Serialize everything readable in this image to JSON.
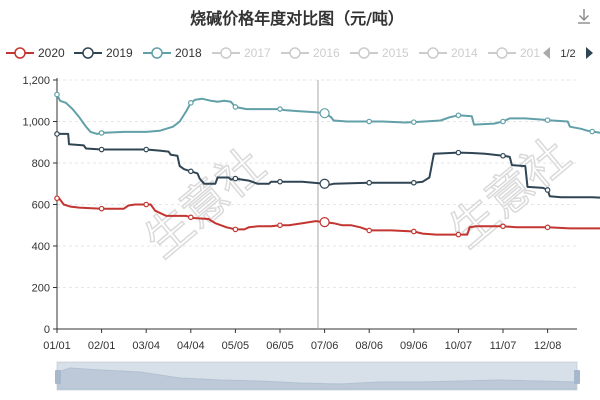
{
  "title": "烧碱价格年度对比图（元/吨）",
  "pager": {
    "label": "1/2"
  },
  "toolbox": {
    "icon": "download-icon"
  },
  "watermark": {
    "text": "生意社"
  },
  "chart_data": {
    "type": "line",
    "title": "烧碱价格年度对比图（元/吨）",
    "xlabel": "",
    "ylabel": "",
    "ylim": [
      0,
      1200
    ],
    "yticks": [
      0,
      200,
      400,
      600,
      800,
      1000,
      1200
    ],
    "grid": true,
    "legend_position": "top",
    "x_tick_labels": [
      "01/01",
      "02/01",
      "03/04",
      "04/04",
      "05/05",
      "06/05",
      "07/06",
      "08/06",
      "09/06",
      "10/07",
      "11/07",
      "12/08"
    ],
    "legend": [
      {
        "name": "2020",
        "color": "#c23531",
        "active": true
      },
      {
        "name": "2019",
        "color": "#2f4554",
        "active": true
      },
      {
        "name": "2018",
        "color": "#61a0a8",
        "active": true
      },
      {
        "name": "2017",
        "color": "#cccccc",
        "active": false
      },
      {
        "name": "2016",
        "color": "#cccccc",
        "active": false
      },
      {
        "name": "2015",
        "color": "#cccccc",
        "active": false
      },
      {
        "name": "2014",
        "color": "#cccccc",
        "active": false
      },
      {
        "name": "201",
        "color": "#cccccc",
        "active": false
      }
    ],
    "series": [
      {
        "name": "2018",
        "color": "#61a0a8",
        "points": [
          [
            0,
            1130
          ],
          [
            0.07,
            1100
          ],
          [
            0.2,
            1090
          ],
          [
            0.35,
            1060
          ],
          [
            0.5,
            1020
          ],
          [
            0.65,
            975
          ],
          [
            0.75,
            950
          ],
          [
            0.9,
            940
          ],
          [
            1,
            945
          ],
          [
            1.5,
            950
          ],
          [
            2,
            950
          ],
          [
            2.3,
            955
          ],
          [
            2.6,
            975
          ],
          [
            2.75,
            1000
          ],
          [
            2.9,
            1050
          ],
          [
            3,
            1090
          ],
          [
            3.1,
            1105
          ],
          [
            3.25,
            1110
          ],
          [
            3.45,
            1100
          ],
          [
            3.6,
            1095
          ],
          [
            3.75,
            1100
          ],
          [
            3.9,
            1095
          ],
          [
            4,
            1070
          ],
          [
            4.25,
            1060
          ],
          [
            4.6,
            1060
          ],
          [
            5,
            1060
          ],
          [
            5.1,
            1055
          ],
          [
            5.4,
            1050
          ],
          [
            5.8,
            1045
          ],
          [
            6,
            1040
          ],
          [
            6.15,
            1020
          ],
          [
            6.2,
            1005
          ],
          [
            6.5,
            1000
          ],
          [
            7,
            1000
          ],
          [
            7.3,
            1000
          ],
          [
            7.8,
            995
          ],
          [
            8.1,
            998
          ],
          [
            8.6,
            1005
          ],
          [
            8.8,
            1020
          ],
          [
            8.9,
            1025
          ],
          [
            9,
            1030
          ],
          [
            9.3,
            1025
          ],
          [
            9.35,
            985
          ],
          [
            9.8,
            990
          ],
          [
            10,
            1000
          ],
          [
            10.15,
            1015
          ],
          [
            10.5,
            1015
          ],
          [
            10.8,
            1010
          ],
          [
            11.1,
            1005
          ],
          [
            11.45,
            1000
          ],
          [
            11.5,
            975
          ],
          [
            11.75,
            965
          ],
          [
            11.9,
            955
          ],
          [
            12.2,
            945
          ],
          [
            12.4,
            940
          ]
        ],
        "markers": [
          0,
          1,
          3,
          4,
          5,
          6,
          7,
          8,
          9,
          10,
          11,
          12
        ]
      },
      {
        "name": "2019",
        "color": "#2f4554",
        "points": [
          [
            0,
            940
          ],
          [
            0.25,
            940
          ],
          [
            0.27,
            890
          ],
          [
            0.6,
            885
          ],
          [
            0.65,
            870
          ],
          [
            1,
            865
          ],
          [
            1.6,
            865
          ],
          [
            2,
            865
          ],
          [
            2.3,
            860
          ],
          [
            2.5,
            855
          ],
          [
            2.55,
            840
          ],
          [
            2.7,
            835
          ],
          [
            2.75,
            785
          ],
          [
            2.85,
            770
          ],
          [
            3,
            760
          ],
          [
            3.15,
            750
          ],
          [
            3.2,
            725
          ],
          [
            3.3,
            700
          ],
          [
            3.55,
            700
          ],
          [
            3.6,
            730
          ],
          [
            3.85,
            730
          ],
          [
            3.9,
            720
          ],
          [
            4,
            725
          ],
          [
            4.3,
            715
          ],
          [
            4.5,
            700
          ],
          [
            4.75,
            700
          ],
          [
            4.8,
            710
          ],
          [
            5,
            710
          ],
          [
            5.5,
            710
          ],
          [
            6,
            700
          ],
          [
            6.1,
            695
          ],
          [
            6.2,
            700
          ],
          [
            7,
            705
          ],
          [
            7.5,
            705
          ],
          [
            8,
            705
          ],
          [
            8.2,
            710
          ],
          [
            8.35,
            730
          ],
          [
            8.45,
            845
          ],
          [
            9,
            850
          ],
          [
            9.3,
            848
          ],
          [
            9.6,
            845
          ],
          [
            10,
            835
          ],
          [
            10.15,
            830
          ],
          [
            10.2,
            790
          ],
          [
            10.5,
            785
          ],
          [
            10.55,
            685
          ],
          [
            10.9,
            680
          ],
          [
            11,
            670
          ],
          [
            11.05,
            640
          ],
          [
            11.3,
            635
          ],
          [
            11.7,
            635
          ],
          [
            12,
            635
          ],
          [
            12.4,
            630
          ]
        ],
        "markers": [
          0,
          1,
          2,
          3,
          4,
          5,
          6,
          7,
          8,
          9,
          10,
          11
        ]
      },
      {
        "name": "2020",
        "color": "#c23531",
        "points": [
          [
            0,
            630
          ],
          [
            0.05,
            630
          ],
          [
            0.15,
            600
          ],
          [
            0.3,
            590
          ],
          [
            0.5,
            585
          ],
          [
            1,
            580
          ],
          [
            1.5,
            580
          ],
          [
            1.6,
            595
          ],
          [
            1.75,
            600
          ],
          [
            2,
            600
          ],
          [
            2.1,
            600
          ],
          [
            2.2,
            570
          ],
          [
            2.35,
            555
          ],
          [
            2.45,
            545
          ],
          [
            2.9,
            545
          ],
          [
            3.05,
            535
          ],
          [
            3.4,
            530
          ],
          [
            3.55,
            510
          ],
          [
            3.8,
            490
          ],
          [
            4,
            480
          ],
          [
            4.2,
            480
          ],
          [
            4.3,
            490
          ],
          [
            4.5,
            495
          ],
          [
            4.8,
            495
          ],
          [
            5,
            500
          ],
          [
            5.2,
            500
          ],
          [
            5.5,
            510
          ],
          [
            5.8,
            520
          ],
          [
            6,
            515
          ],
          [
            6.2,
            510
          ],
          [
            6.4,
            500
          ],
          [
            6.6,
            500
          ],
          [
            6.8,
            490
          ],
          [
            7,
            475
          ],
          [
            7.5,
            475
          ],
          [
            8,
            470
          ],
          [
            8.2,
            460
          ],
          [
            8.5,
            455
          ],
          [
            8.8,
            455
          ],
          [
            9,
            455
          ],
          [
            9.2,
            455
          ],
          [
            9.25,
            490
          ],
          [
            9.4,
            495
          ],
          [
            9.6,
            495
          ],
          [
            10,
            495
          ],
          [
            10.3,
            490
          ],
          [
            10.6,
            490
          ],
          [
            11,
            490
          ],
          [
            11.5,
            485
          ],
          [
            12,
            485
          ],
          [
            12.4,
            485
          ]
        ],
        "markers": [
          0,
          1,
          2,
          3,
          4,
          5,
          6,
          7,
          8,
          9,
          10,
          11
        ]
      }
    ]
  }
}
